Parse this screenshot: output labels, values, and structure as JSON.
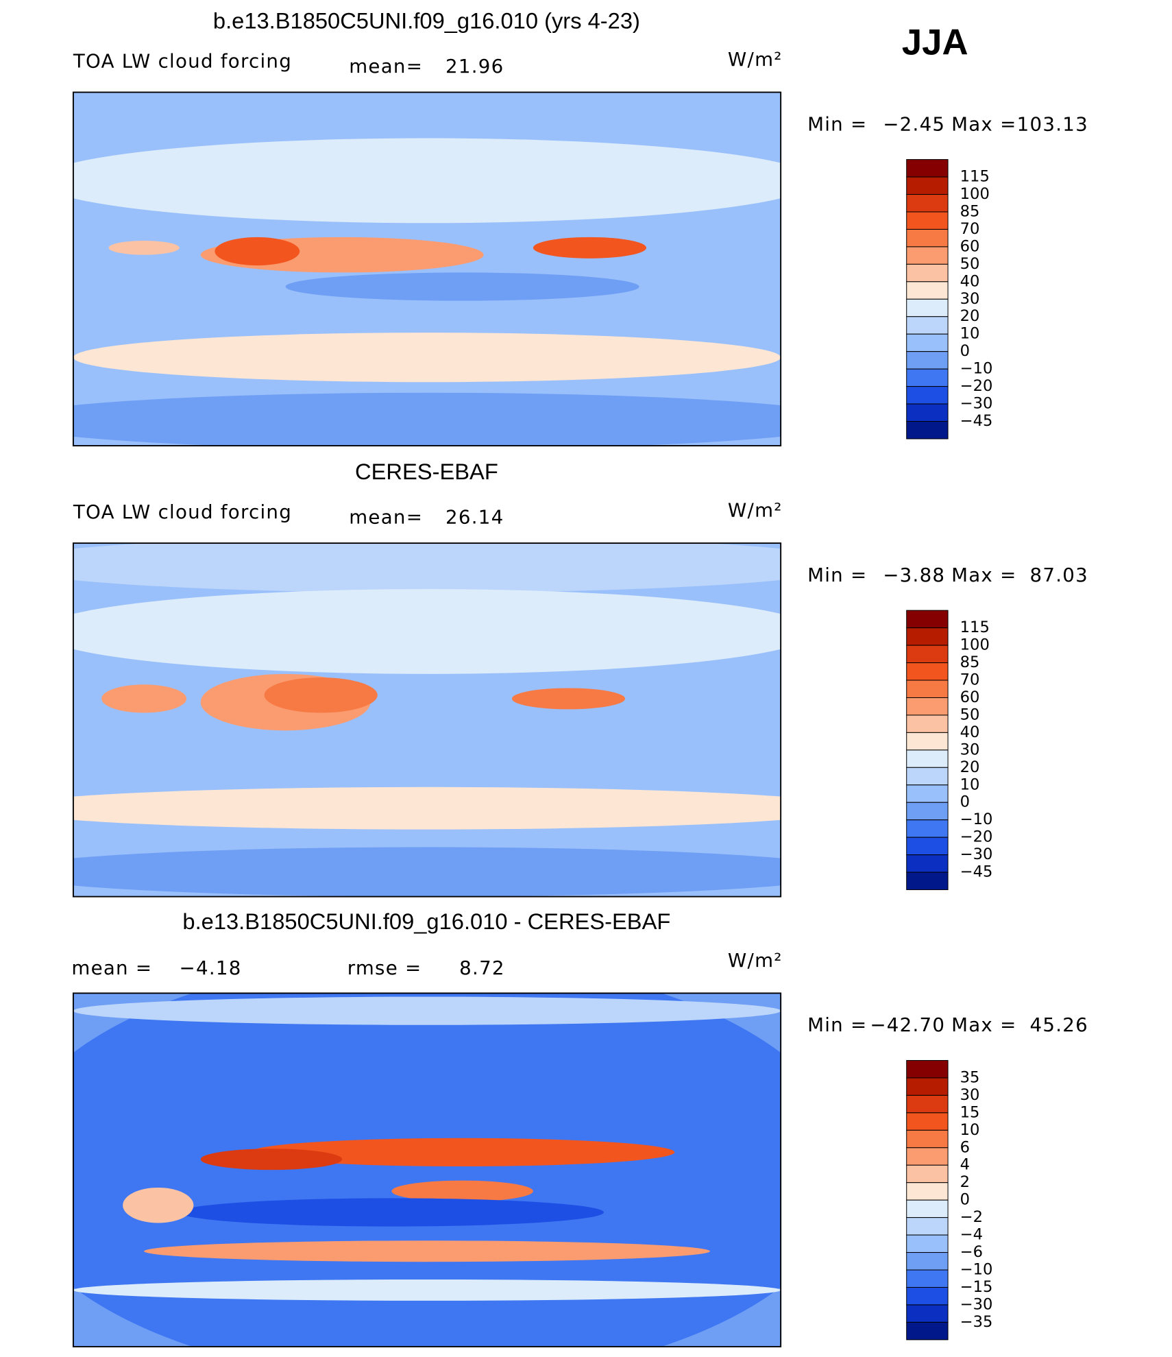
{
  "season": "JJA",
  "panels": [
    {
      "title": "b.e13.B1850C5UNI.f09_g16.010 (yrs 4-23)",
      "subtitle": "TOA LW cloud forcing",
      "stats": [
        {
          "label": "mean=",
          "value": 21.96
        }
      ],
      "units": "W/m²",
      "min_label": "Min =",
      "min": {
        "value": -2.45,
        "label": "−2.45"
      },
      "max_label": "Max =",
      "max": 103.13,
      "colorbar": {
        "colors": [
          "#850000",
          "#b51c00",
          "#dc3a10",
          "#f2551e",
          "#f77a45",
          "#fb9c70",
          "#fbc3a4",
          "#fde6d3",
          "#dcecfb",
          "#bcd6fb",
          "#9ac0fb",
          "#6f9ef5",
          "#3f77f2",
          "#1d4fe5",
          "#0b2fc0",
          "#00188a"
        ],
        "labels": [
          115,
          100,
          85,
          70,
          60,
          50,
          40,
          30,
          20,
          10,
          0,
          {
            "value": -10,
            "label": "−10"
          },
          {
            "value": -20,
            "label": "−20"
          },
          {
            "value": -30,
            "label": "−30"
          },
          {
            "value": -45,
            "label": "−45"
          }
        ]
      }
    },
    {
      "title": "CERES-EBAF",
      "subtitle": "TOA LW cloud forcing",
      "stats": [
        {
          "label": "mean=",
          "value": 26.14
        }
      ],
      "units": "W/m²",
      "min_label": "Min =",
      "min": {
        "value": -3.88,
        "label": "−3.88"
      },
      "max_label": "Max =",
      "max": 87.03,
      "colorbar": {
        "colors": [
          "#850000",
          "#b51c00",
          "#dc3a10",
          "#f2551e",
          "#f77a45",
          "#fb9c70",
          "#fbc3a4",
          "#fde6d3",
          "#dcecfb",
          "#bcd6fb",
          "#9ac0fb",
          "#6f9ef5",
          "#3f77f2",
          "#1d4fe5",
          "#0b2fc0",
          "#00188a"
        ],
        "labels": [
          115,
          100,
          85,
          70,
          60,
          50,
          40,
          30,
          20,
          10,
          0,
          {
            "value": -10,
            "label": "−10"
          },
          {
            "value": -20,
            "label": "−20"
          },
          {
            "value": -30,
            "label": "−30"
          },
          {
            "value": -45,
            "label": "−45"
          }
        ]
      }
    },
    {
      "title": "b.e13.B1850C5UNI.f09_g16.010 - CERES-EBAF",
      "stats": [
        {
          "label": "mean =",
          "value": {
            "value": -4.18,
            "label": "−4.18"
          }
        },
        {
          "label": "rmse =",
          "value": 8.72
        }
      ],
      "units": "W/m²",
      "min_label": "Min =",
      "min": {
        "value": -42.7,
        "label": "−42.70"
      },
      "max_label": "Max =",
      "max": 45.26,
      "colorbar": {
        "colors": [
          "#850000",
          "#b51c00",
          "#dc3a10",
          "#f2551e",
          "#f77a45",
          "#fb9c70",
          "#fbc3a4",
          "#fde6d3",
          "#dcecfb",
          "#bcd6fb",
          "#9ac0fb",
          "#6f9ef5",
          "#3f77f2",
          "#1d4fe5",
          "#0b2fc0",
          "#00188a"
        ],
        "labels": [
          35,
          30,
          15,
          10,
          6,
          4,
          2,
          0,
          {
            "value": -2,
            "label": "−2"
          },
          {
            "value": -4,
            "label": "−4"
          },
          {
            "value": -6,
            "label": "−6"
          },
          {
            "value": -10,
            "label": "−10"
          },
          {
            "value": -15,
            "label": "−15"
          },
          {
            "value": -30,
            "label": "−30"
          },
          {
            "value": -35,
            "label": "−35"
          }
        ]
      }
    }
  ]
}
